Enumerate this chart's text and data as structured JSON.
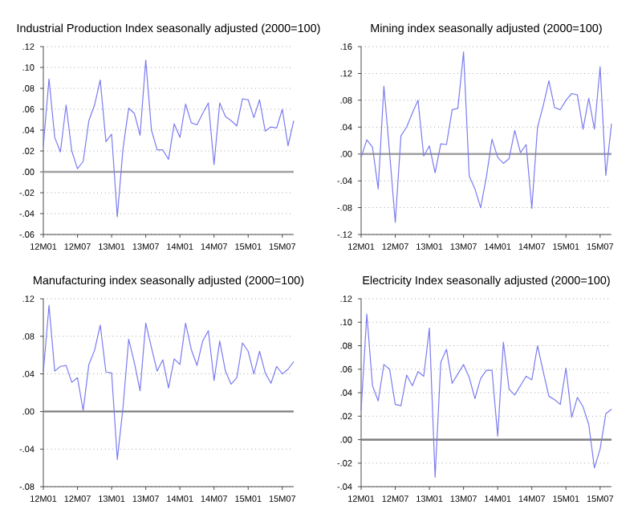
{
  "chart_data": [
    {
      "type": "line",
      "title": "Industrial Production Index seasonally adjusted (2000=100)",
      "grid": "y",
      "categories": [
        "12M01",
        null,
        null,
        null,
        null,
        null,
        "12M07",
        null,
        null,
        null,
        null,
        null,
        "13M01",
        null,
        null,
        null,
        null,
        null,
        "13M07",
        null,
        null,
        null,
        null,
        null,
        "14M01",
        null,
        null,
        null,
        null,
        null,
        "14M07",
        null,
        null,
        null,
        null,
        null,
        "15M01",
        null,
        null,
        null,
        null,
        null,
        "15M07",
        null,
        null
      ],
      "series": [
        {
          "color": "#7b7bf0",
          "values": [
            0.025,
            0.089,
            0.033,
            0.019,
            0.064,
            0.02,
            0.003,
            0.01,
            0.049,
            0.064,
            0.088,
            0.029,
            0.036,
            -0.043,
            0.022,
            0.061,
            0.056,
            0.035,
            0.107,
            0.04,
            0.021,
            0.021,
            0.012,
            0.046,
            0.033,
            0.065,
            0.047,
            0.045,
            0.056,
            0.066,
            0.007,
            0.066,
            0.053,
            0.049,
            0.044,
            0.07,
            0.069,
            0.052,
            0.069,
            0.039,
            0.043,
            0.042,
            0.06,
            0.025,
            0.049
          ]
        }
      ],
      "ylim": [
        -0.06,
        0.12
      ],
      "yticks": [
        {
          "value": -0.06,
          "label": "-.06"
        },
        {
          "value": -0.04,
          "label": "-.04"
        },
        {
          "value": -0.02,
          "label": "-.02"
        },
        {
          "value": 0,
          "label": ".00"
        },
        {
          "value": 0.02,
          "label": ".02"
        },
        {
          "value": 0.04,
          "label": ".04"
        },
        {
          "value": 0.06,
          "label": ".06"
        },
        {
          "value": 0.08,
          "label": ".08"
        },
        {
          "value": 0.1,
          "label": ".10"
        },
        {
          "value": 0.12,
          "label": ".12"
        }
      ],
      "ref_lines": [
        {
          "axis": "y",
          "value": 0,
          "color": "#a0a0a0"
        }
      ]
    },
    {
      "type": "line",
      "title": "Mining index seasonally adjusted (2000=100)",
      "grid": "y",
      "categories": [
        "12M01",
        null,
        null,
        null,
        null,
        null,
        "12M07",
        null,
        null,
        null,
        null,
        null,
        "13M01",
        null,
        null,
        null,
        null,
        null,
        "13M07",
        null,
        null,
        null,
        null,
        null,
        "14M01",
        null,
        null,
        null,
        null,
        null,
        "14M07",
        null,
        null,
        null,
        null,
        null,
        "15M01",
        null,
        null,
        null,
        null,
        null,
        "15M07",
        null,
        null
      ],
      "series": [
        {
          "color": "#7b7bf0",
          "values": [
            -0.005,
            0.021,
            0.01,
            -0.052,
            0.101,
            0.002,
            -0.102,
            0.027,
            0.04,
            0.061,
            0.08,
            -0.003,
            0.012,
            -0.028,
            0.015,
            0.014,
            0.066,
            0.068,
            0.152,
            -0.033,
            -0.052,
            -0.08,
            -0.035,
            0.022,
            -0.005,
            -0.014,
            -0.007,
            0.035,
            0.002,
            0.014,
            -0.081,
            0.04,
            0.072,
            0.109,
            0.069,
            0.066,
            0.08,
            0.09,
            0.088,
            0.037,
            0.083,
            0.037,
            0.13,
            -0.032,
            0.045
          ]
        }
      ],
      "ylim": [
        -0.12,
        0.16
      ],
      "yticks": [
        {
          "value": -0.12,
          "label": "-.12"
        },
        {
          "value": -0.08,
          "label": "-.08"
        },
        {
          "value": -0.04,
          "label": "-.04"
        },
        {
          "value": 0,
          "label": ".00"
        },
        {
          "value": 0.04,
          "label": ".04"
        },
        {
          "value": 0.08,
          "label": ".08"
        },
        {
          "value": 0.12,
          "label": ".12"
        },
        {
          "value": 0.16,
          "label": ".16"
        }
      ],
      "ref_lines": [
        {
          "axis": "y",
          "value": 0,
          "color": "#a0a0a0"
        }
      ]
    },
    {
      "type": "line",
      "title": "Manufacturing index seasonally adjusted (2000=100)",
      "grid": "y",
      "categories": [
        "12M01",
        null,
        null,
        null,
        null,
        null,
        "12M07",
        null,
        null,
        null,
        null,
        null,
        "13M01",
        null,
        null,
        null,
        null,
        null,
        "13M07",
        null,
        null,
        null,
        null,
        null,
        "14M01",
        null,
        null,
        null,
        null,
        null,
        "14M07",
        null,
        null,
        null,
        null,
        null,
        "15M01",
        null,
        null,
        null,
        null,
        null,
        "15M07",
        null,
        null
      ],
      "series": [
        {
          "color": "#7b7bf0",
          "values": [
            0.042,
            0.113,
            0.043,
            0.048,
            0.049,
            0.031,
            0.036,
            0.001,
            0.05,
            0.065,
            0.092,
            0.042,
            0.041,
            -0.051,
            0.004,
            0.077,
            0.052,
            0.022,
            0.094,
            0.068,
            0.043,
            0.055,
            0.025,
            0.056,
            0.05,
            0.094,
            0.066,
            0.049,
            0.075,
            0.086,
            0.033,
            0.075,
            0.043,
            0.029,
            0.036,
            0.073,
            0.064,
            0.04,
            0.064,
            0.041,
            0.03,
            0.048,
            0.04,
            0.045,
            0.053
          ]
        }
      ],
      "ylim": [
        -0.08,
        0.12
      ],
      "yticks": [
        {
          "value": -0.08,
          "label": "-.08"
        },
        {
          "value": -0.04,
          "label": "-.04"
        },
        {
          "value": 0,
          "label": ".00"
        },
        {
          "value": 0.04,
          "label": ".04"
        },
        {
          "value": 0.08,
          "label": ".08"
        },
        {
          "value": 0.12,
          "label": ".12"
        }
      ],
      "ref_lines": [
        {
          "axis": "y",
          "value": 0,
          "color": "#808080"
        }
      ]
    },
    {
      "type": "line",
      "title": "Electricity Index seasonally adjusted (2000=100)",
      "grid": "y",
      "categories": [
        "12M01",
        null,
        null,
        null,
        null,
        null,
        "12M07",
        null,
        null,
        null,
        null,
        null,
        "13M01",
        null,
        null,
        null,
        null,
        null,
        "13M07",
        null,
        null,
        null,
        null,
        null,
        "14M01",
        null,
        null,
        null,
        null,
        null,
        "14M07",
        null,
        null,
        null,
        null,
        null,
        "15M01",
        null,
        null,
        null,
        null,
        null,
        "15M07",
        null,
        null
      ],
      "series": [
        {
          "color": "#7b7bf0",
          "values": [
            0.025,
            0.107,
            0.046,
            0.033,
            0.064,
            0.06,
            0.03,
            0.029,
            0.055,
            0.046,
            0.058,
            0.054,
            0.095,
            -0.032,
            0.066,
            0.077,
            0.048,
            0.056,
            0.064,
            0.053,
            0.035,
            0.052,
            0.059,
            0.059,
            0.003,
            0.083,
            0.043,
            0.038,
            0.046,
            0.054,
            0.051,
            0.08,
            0.058,
            0.037,
            0.034,
            0.03,
            0.061,
            0.019,
            0.036,
            0.028,
            0.013,
            -0.024,
            -0.008,
            0.022,
            0.026
          ]
        }
      ],
      "ylim": [
        -0.04,
        0.12
      ],
      "yticks": [
        {
          "value": -0.04,
          "label": "-.04"
        },
        {
          "value": -0.02,
          "label": "-.02"
        },
        {
          "value": 0,
          "label": ".00"
        },
        {
          "value": 0.02,
          "label": ".02"
        },
        {
          "value": 0.04,
          "label": ".04"
        },
        {
          "value": 0.06,
          "label": ".06"
        },
        {
          "value": 0.08,
          "label": ".08"
        },
        {
          "value": 0.1,
          "label": ".10"
        },
        {
          "value": 0.12,
          "label": ".12"
        }
      ],
      "ref_lines": [
        {
          "axis": "y",
          "value": 0,
          "color": "#808080"
        }
      ]
    }
  ]
}
